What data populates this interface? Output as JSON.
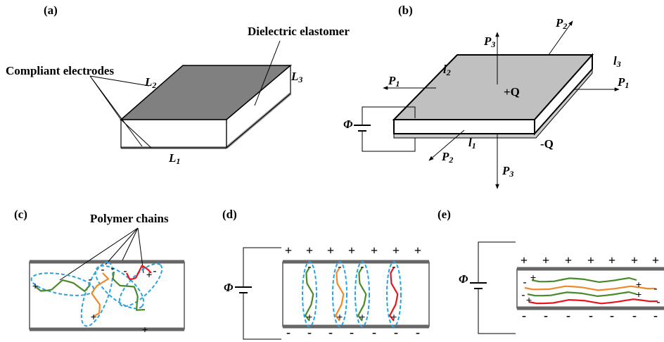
{
  "panel_a": {
    "label": "(a)",
    "dielectric": "Dielectric elastomer",
    "electrodes": "Compliant electrodes",
    "L2": {
      "main": "L",
      "sub": "2"
    },
    "L3": {
      "main": "L",
      "sub": "3"
    },
    "L1": {
      "main": "L",
      "sub": "1"
    }
  },
  "panel_b": {
    "label": "(b)",
    "P3_up": {
      "main": "P",
      "sub": "3"
    },
    "P2_up": {
      "main": "P",
      "sub": "2"
    },
    "l3": {
      "main": "l",
      "sub": "3"
    },
    "P1_left": {
      "main": "P",
      "sub": "1"
    },
    "l2": {
      "main": "l",
      "sub": "2"
    },
    "plus_q": "+Q",
    "P1_right": {
      "main": "P",
      "sub": "1"
    },
    "phi": "Φ",
    "P2_down": {
      "main": "P",
      "sub": "2"
    },
    "l1": {
      "main": "l",
      "sub": "1"
    },
    "minus_q": "-Q",
    "P3_down": {
      "main": "P",
      "sub": "3"
    }
  },
  "panel_c": {
    "label": "(c)",
    "polymer": "Polymer chains",
    "chain_signs": [
      "+",
      "-",
      "+",
      "-",
      "-",
      "-",
      "+",
      "-",
      "+"
    ]
  },
  "panel_d": {
    "label": "(d)",
    "phi": "Φ",
    "top_signs": [
      "+",
      "+",
      "+",
      "+",
      "+",
      "+",
      "+"
    ],
    "bottom_signs": [
      "-",
      "-",
      "-",
      "-",
      "-",
      "-",
      "-"
    ],
    "chain_signs": [
      "-",
      "+",
      "-",
      "+",
      "-",
      "+",
      "-",
      "+"
    ]
  },
  "panel_e": {
    "label": "(e)",
    "phi": "Φ",
    "top_signs": [
      "+",
      "+",
      "+",
      "+",
      "+",
      "+",
      "+"
    ],
    "bottom_signs": [
      "-",
      "-",
      "-",
      "-",
      "-",
      "-",
      "-"
    ],
    "chain_signs": [
      "+",
      "-",
      "-",
      "+",
      "+",
      "-",
      "+",
      "-"
    ]
  }
}
